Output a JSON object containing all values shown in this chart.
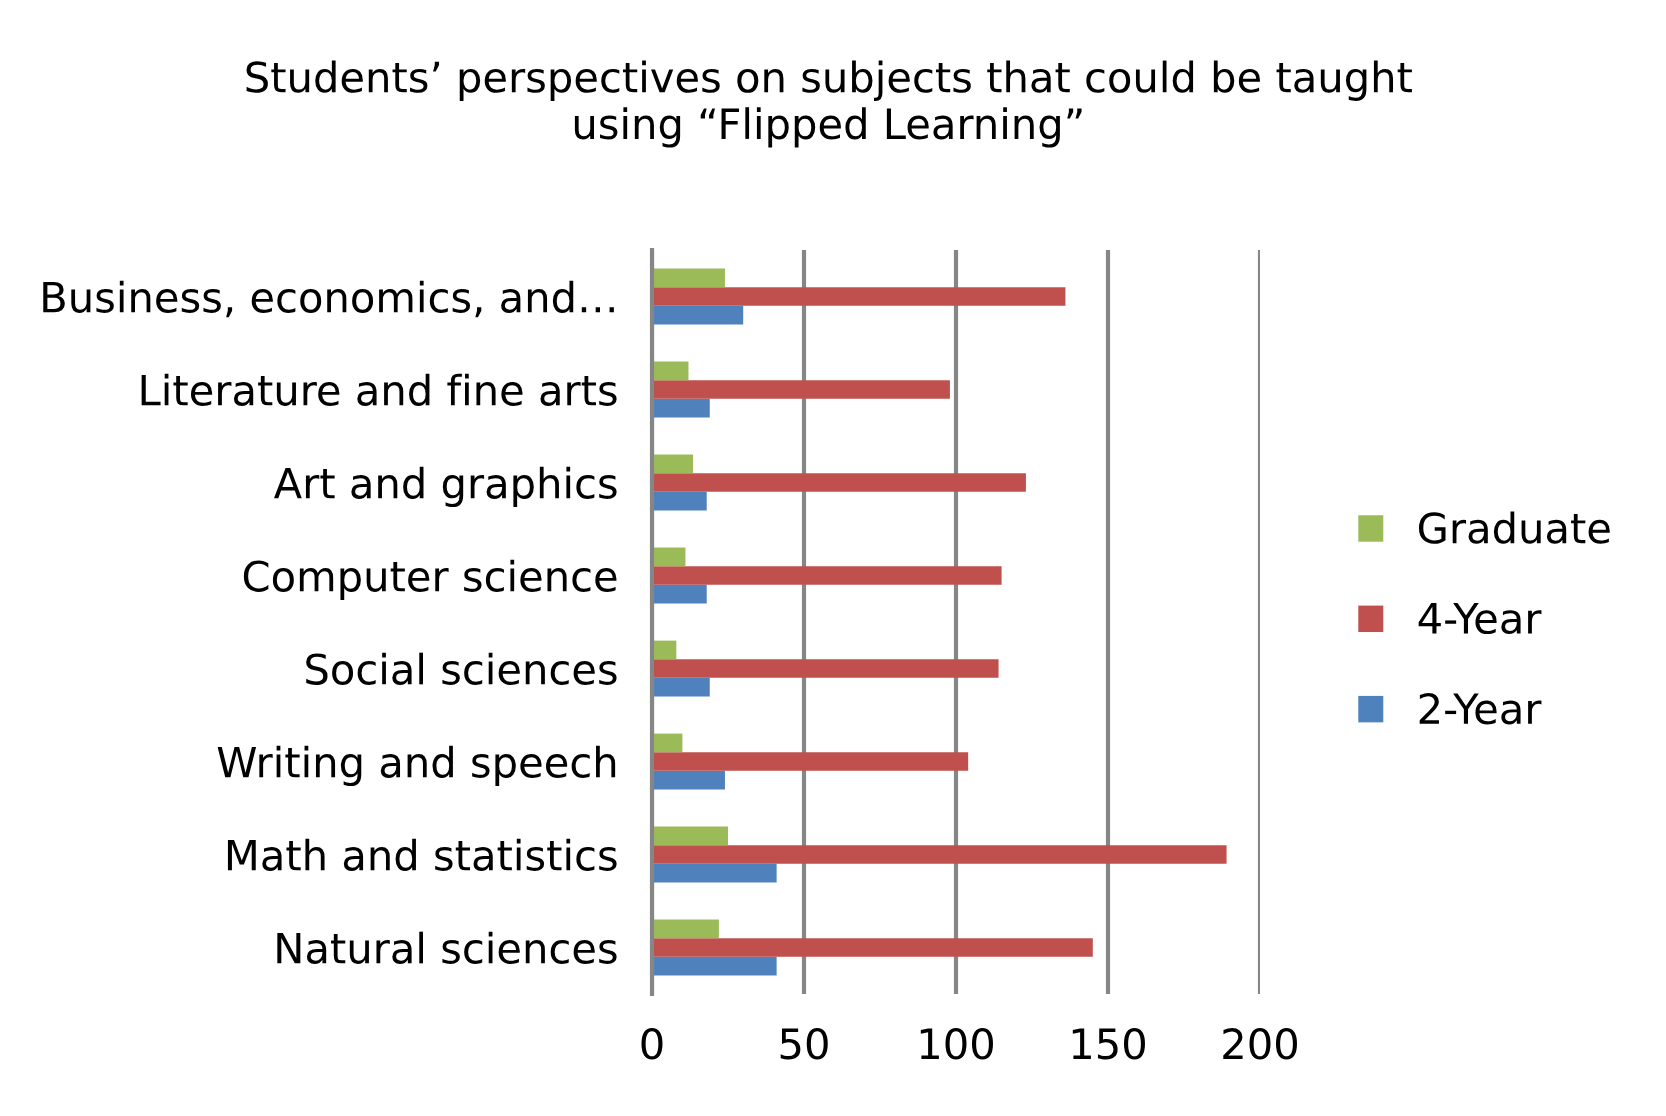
{
  "chart_data": {
    "type": "bar",
    "orientation": "horizontal",
    "title": "Students’ perspectives on subjects that could be taught\nusing “Flipped Learning”",
    "categories": [
      "Business, economics, and…",
      "Literature and fine arts",
      "Art and graphics",
      "Computer science",
      "Social sciences",
      "Writing and speech",
      "Math and statistics",
      "Natural sciences"
    ],
    "series": [
      {
        "name": "2-Year",
        "color": "#4f81bd",
        "values": [
          30,
          19,
          18,
          18,
          19,
          24,
          41,
          41
        ]
      },
      {
        "name": "4-Year",
        "color": "#c0504d",
        "values": [
          136,
          98,
          123,
          115,
          114,
          104,
          189,
          145
        ]
      },
      {
        "name": "Graduate",
        "color": "#9bbb59",
        "values": [
          24,
          12,
          13.5,
          11,
          8,
          10,
          25,
          22
        ]
      }
    ],
    "xlim": [
      0,
      200
    ],
    "xticks": [
      0,
      50,
      100,
      150,
      200
    ],
    "grid": "x",
    "legend": "right"
  }
}
